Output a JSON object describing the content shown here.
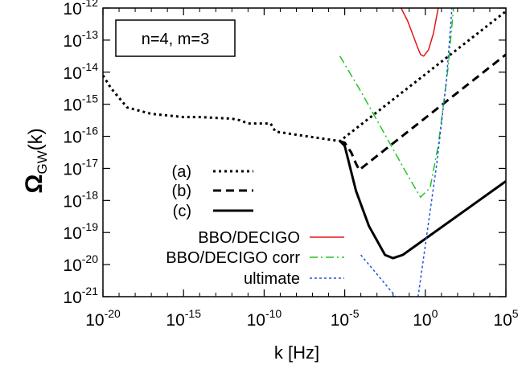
{
  "chart_data": {
    "type": "line",
    "xlabel": "k [Hz]",
    "ylabel": {
      "main": "Ω",
      "sub": "GW",
      "suffix": "(k)"
    },
    "xscale": "log",
    "yscale": "log",
    "xlim_exp": [
      -20,
      5
    ],
    "ylim_exp": [
      -21,
      -12
    ],
    "x_ticks": [
      {
        "base": "10",
        "exp": "-20",
        "value": -20
      },
      {
        "base": "10",
        "exp": "-15",
        "value": -15
      },
      {
        "base": "10",
        "exp": "-10",
        "value": -10
      },
      {
        "base": "10",
        "exp": "-5",
        "value": -5
      },
      {
        "base": "10",
        "exp": "0",
        "value": 0
      },
      {
        "base": "10",
        "exp": "5",
        "value": 5
      }
    ],
    "y_ticks": [
      {
        "base": "10",
        "exp": "-12",
        "value": -12
      },
      {
        "base": "10",
        "exp": "-13",
        "value": -13
      },
      {
        "base": "10",
        "exp": "-14",
        "value": -14
      },
      {
        "base": "10",
        "exp": "-15",
        "value": -15
      },
      {
        "base": "10",
        "exp": "-16",
        "value": -16
      },
      {
        "base": "10",
        "exp": "-17",
        "value": -17
      },
      {
        "base": "10",
        "exp": "-18",
        "value": -18
      },
      {
        "base": "10",
        "exp": "-19",
        "value": -19
      },
      {
        "base": "10",
        "exp": "-20",
        "value": -20
      },
      {
        "base": "10",
        "exp": "-21",
        "value": -21
      }
    ],
    "annotation": "n=4, m=3",
    "legend_placement": "center-left",
    "grid": false,
    "note": "x and y values below are log10 of k [Hz] and log10 of Ω_GW(k)",
    "series": [
      {
        "name": "(a)",
        "color": "#000000",
        "dash": "dotted",
        "width": 3,
        "x": [
          -20,
          -19.5,
          -18.5,
          -17,
          -16,
          -15,
          -14,
          -12,
          -11.5,
          -11,
          -9.6,
          -9.3,
          -8,
          -6,
          -5.3,
          5
        ],
        "y": [
          -14.1,
          -14.5,
          -15.1,
          -15.3,
          -15.35,
          -15.4,
          -15.4,
          -15.45,
          -15.5,
          -15.6,
          -15.6,
          -15.85,
          -15.95,
          -16.1,
          -16.15,
          -12.1
        ]
      },
      {
        "name": "(b)",
        "color": "#000000",
        "dash": "dashed",
        "width": 3,
        "x": [
          -5.3,
          -5.0,
          -4.6,
          -4.3,
          -4.1,
          5
        ],
        "y": [
          -16.15,
          -16.2,
          -16.5,
          -16.85,
          -17.05,
          -13.45
        ]
      },
      {
        "name": "(c)",
        "color": "#000000",
        "dash": "solid",
        "width": 3,
        "x": [
          -5.3,
          -5.0,
          -4.7,
          -4.3,
          -3.5,
          -2.5,
          -2,
          -1.4,
          5
        ],
        "y": [
          -16.15,
          -16.3,
          -16.9,
          -17.7,
          -18.8,
          -19.7,
          -19.8,
          -19.7,
          -17.4
        ]
      },
      {
        "name": "BBO/DECIGO",
        "color": "#e01818",
        "dash": "solid",
        "width": 1.5,
        "x": [
          -1.5,
          -1.1,
          -0.8,
          -0.5,
          -0.3,
          -0.1,
          0.2,
          0.5,
          0.8
        ],
        "y": [
          -12,
          -12.4,
          -12.8,
          -13.2,
          -13.45,
          -13.5,
          -13.3,
          -12.8,
          -12
        ]
      },
      {
        "name": "BBO/DECIGO corr",
        "color": "#22c422",
        "dash": "dashdot",
        "width": 1.5,
        "x": [
          -5.3,
          -4,
          -3,
          -2,
          -1,
          -0.3,
          0.3,
          0.8,
          1.4,
          1.75
        ],
        "y": [
          -13.5,
          -14.6,
          -15.5,
          -16.4,
          -17.3,
          -17.9,
          -17.6,
          -16.3,
          -13.9,
          -12
        ]
      },
      {
        "name": "ultimate",
        "color": "#2050e0",
        "dash": "dotted-fine",
        "width": 1.5,
        "x": [
          -4,
          -3,
          -2,
          -1.2,
          -0.7
        ],
        "y": [
          -19.7,
          -20.3,
          -20.9,
          -21.5,
          -21.9
        ],
        "x2": [
          -0.7,
          0,
          0.7,
          1.3,
          1.65
        ],
        "y2": [
          -21.9,
          -19.4,
          -16.9,
          -14.3,
          -12
        ]
      }
    ]
  }
}
